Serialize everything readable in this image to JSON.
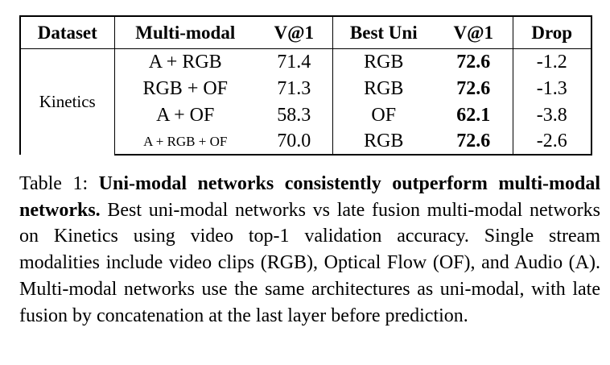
{
  "table": {
    "headers": [
      "Dataset",
      "Multi-modal",
      "V@1",
      "Best Uni",
      "V@1",
      "Drop"
    ],
    "dataset": "Kinetics",
    "rows": [
      {
        "multi": "A + RGB",
        "v_multi": "71.4",
        "best_uni": "RGB",
        "v_uni": "72.6",
        "drop": "-1.2"
      },
      {
        "multi": "RGB + OF",
        "v_multi": "71.3",
        "best_uni": "RGB",
        "v_uni": "72.6",
        "drop": "-1.3"
      },
      {
        "multi": "A + OF",
        "v_multi": "58.3",
        "best_uni": "OF",
        "v_uni": "62.1",
        "drop": "-3.8"
      },
      {
        "multi": "A + RGB + OF",
        "v_multi": "70.0",
        "best_uni": "RGB",
        "v_uni": "72.6",
        "drop": "-2.6"
      }
    ]
  },
  "caption": {
    "label": "Table 1: ",
    "bold": "Uni-modal networks consistently outperform multi-modal networks.",
    "text": " Best uni-modal networks vs late fusion multi-modal networks on Kinetics using video top-1 validation accuracy. Single stream modalities include video clips (RGB), Optical Flow (OF), and Audio (A). Multi-modal networks use the same architectures as uni-modal, with late fusion by concatenation at the last layer before prediction."
  }
}
